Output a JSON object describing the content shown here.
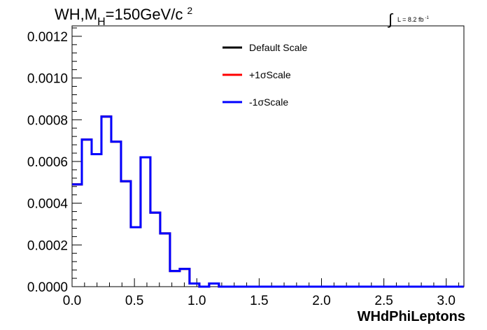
{
  "title": {
    "main": "WH,M",
    "sub": "H",
    "rest": "=150GeV/c",
    "sup": "2"
  },
  "lumi": {
    "integral": "∫",
    "text": "L = 8.2 fb",
    "sup": "-1"
  },
  "legend": [
    {
      "label": "Default Scale",
      "color": "#000000"
    },
    {
      "label": "+1σScale",
      "color": "#ff0000"
    },
    {
      "label": "-1σScale",
      "color": "#0000ff"
    }
  ],
  "chart_data": {
    "type": "histogram",
    "xlabel": "WHdPhiLeptons",
    "ylabel": "",
    "xlim": [
      0,
      3.1416
    ],
    "ylim": [
      0,
      0.00125
    ],
    "x_ticks": [
      "0.0",
      "0.5",
      "1.0",
      "1.5",
      "2.0",
      "2.5",
      "3.0"
    ],
    "y_ticks": [
      "0.0000",
      "0.0002",
      "0.0004",
      "0.0006",
      "0.0008",
      "0.0010",
      "0.0012"
    ],
    "bin_width": 0.0785,
    "bin_start": 0,
    "values": [
      0.00049,
      0.000705,
      0.000635,
      0.000815,
      0.000695,
      0.000505,
      0.000285,
      0.00062,
      0.000355,
      0.000255,
      7.5e-05,
      8.5e-05,
      1.5e-05,
      0,
      1.5e-05,
      0,
      0,
      0,
      0,
      0,
      0,
      0,
      0,
      0,
      0,
      0,
      0,
      0,
      0,
      0,
      0,
      0,
      0,
      0,
      0,
      0,
      0,
      0,
      0,
      0
    ],
    "series": [
      {
        "name": "Default Scale",
        "color": "#000000"
      },
      {
        "name": "+1σScale",
        "color": "#ff0000"
      },
      {
        "name": "-1σScale",
        "color": "#0000ff"
      }
    ],
    "grid": false,
    "legend_position": "top-center"
  }
}
